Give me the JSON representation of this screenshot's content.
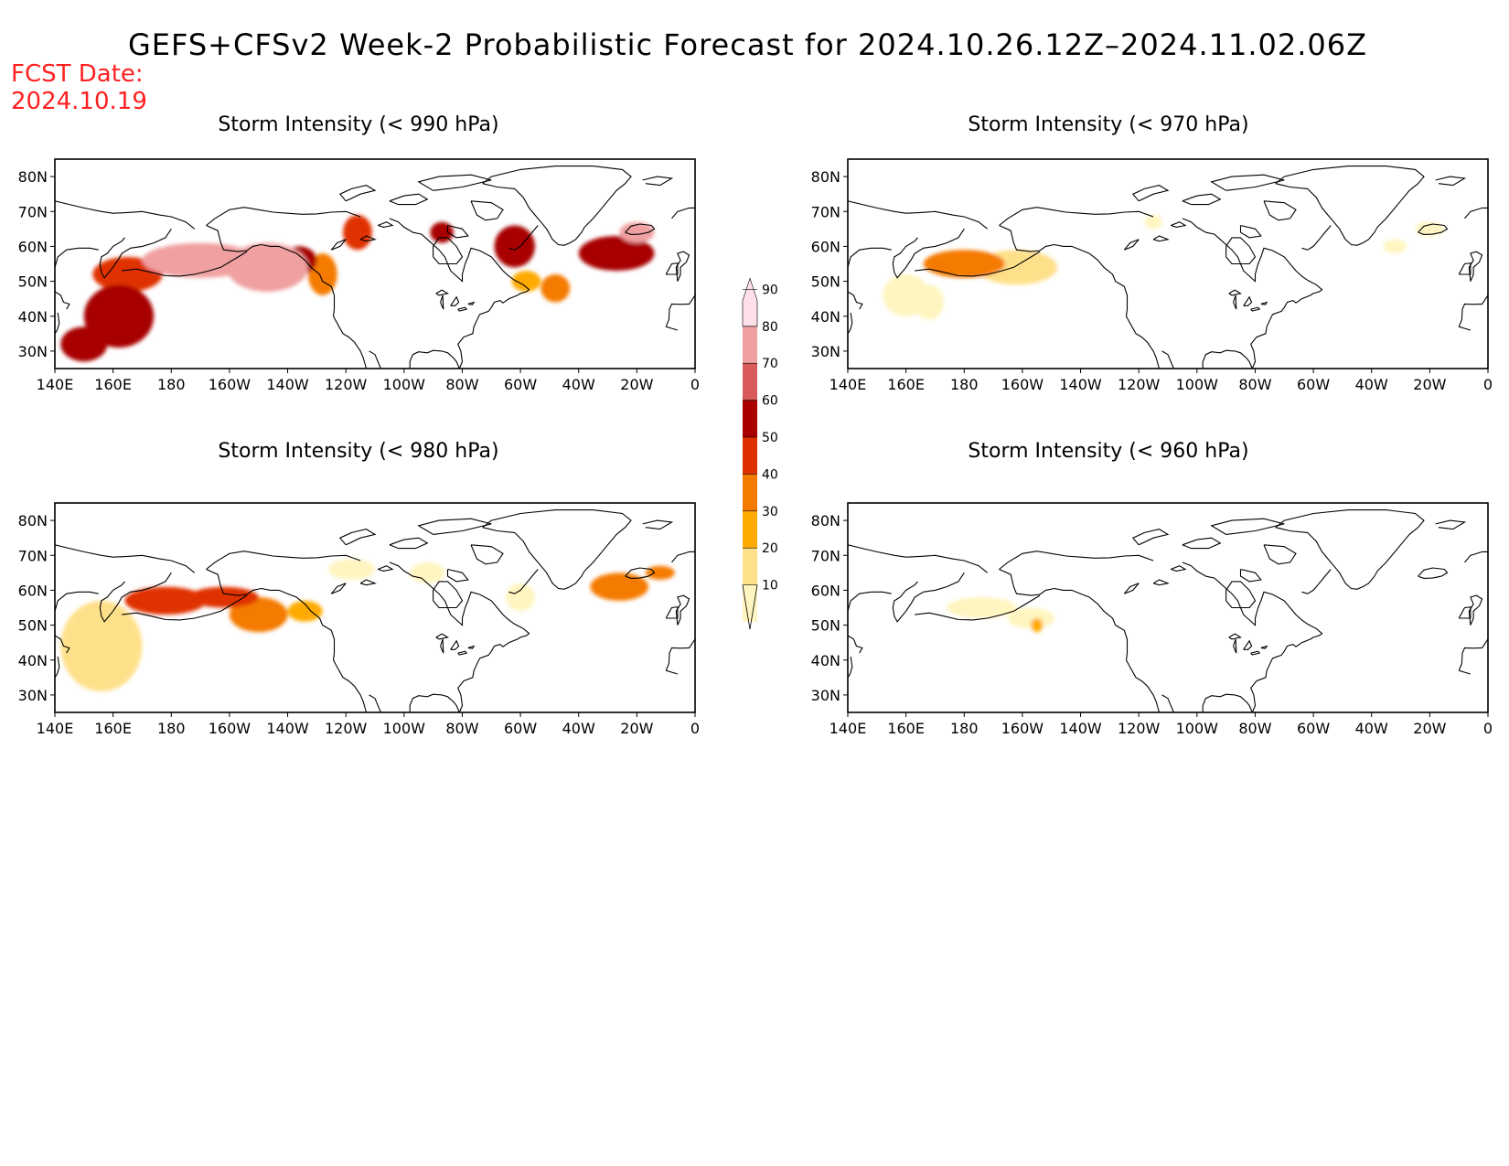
{
  "title": "GEFS+CFSv2 Week-2 Probabilistic Forecast for 2024.10.26.12Z–2024.11.02.06Z",
  "fcst_label": "FCST Date:",
  "fcst_date": "2024.10.19",
  "lat_labels": [
    "80N",
    "70N",
    "60N",
    "50N",
    "40N",
    "30N"
  ],
  "lon_labels": [
    "140E",
    "160E",
    "180",
    "160W",
    "140W",
    "120W",
    "100W",
    "80W",
    "60W",
    "40W",
    "20W",
    "0"
  ],
  "colorbar": {
    "levels": [
      10,
      20,
      30,
      40,
      50,
      60,
      70,
      80,
      90
    ],
    "colors": [
      "#fff5c0",
      "#ffe08a",
      "#ffaa00",
      "#f47a00",
      "#e03000",
      "#a80000",
      "#d85a5a",
      "#f0a0a0",
      "#ffe0e8"
    ]
  },
  "panels": [
    {
      "id": "p990",
      "title": "Storm Intensity (< 990 hPa)",
      "blobs": [
        {
          "lon": 162,
          "lat": 40,
          "rx": 12,
          "ry": 9,
          "v": 60
        },
        {
          "lon": 150,
          "lat": 32,
          "rx": 8,
          "ry": 5,
          "v": 60
        },
        {
          "lon": 165,
          "lat": 52,
          "rx": 12,
          "ry": 5,
          "v": 55
        },
        {
          "lon": 190,
          "lat": 56,
          "rx": 20,
          "ry": 5,
          "v": 80
        },
        {
          "lon": 213,
          "lat": 54,
          "rx": 14,
          "ry": 7,
          "v": 80
        },
        {
          "lon": 224,
          "lat": 56,
          "rx": 6,
          "ry": 4,
          "v": 60
        },
        {
          "lon": 232,
          "lat": 52,
          "rx": 5,
          "ry": 6,
          "v": 40
        },
        {
          "lon": 244,
          "lat": 64,
          "rx": 5,
          "ry": 5,
          "v": 50
        },
        {
          "lon": 273,
          "lat": 64,
          "rx": 4,
          "ry": 3,
          "v": 60
        },
        {
          "lon": 298,
          "lat": 60,
          "rx": 7,
          "ry": 6,
          "v": 60
        },
        {
          "lon": 302,
          "lat": 50,
          "rx": 5,
          "ry": 3,
          "v": 35
        },
        {
          "lon": 333,
          "lat": 58,
          "rx": 13,
          "ry": 5,
          "v": 60
        },
        {
          "lon": 340,
          "lat": 64,
          "rx": 6,
          "ry": 3,
          "v": 80
        },
        {
          "lon": 312,
          "lat": 48,
          "rx": 5,
          "ry": 4,
          "v": 40
        }
      ]
    },
    {
      "id": "p970",
      "title": "Storm Intensity (< 970 hPa)",
      "blobs": [
        {
          "lon": 160,
          "lat": 46,
          "rx": 8,
          "ry": 6,
          "v": 15
        },
        {
          "lon": 180,
          "lat": 55,
          "rx": 14,
          "ry": 4,
          "v": 40
        },
        {
          "lon": 198,
          "lat": 54,
          "rx": 14,
          "ry": 5,
          "v": 25
        },
        {
          "lon": 168,
          "lat": 44,
          "rx": 5,
          "ry": 5,
          "v": 15
        },
        {
          "lon": 245,
          "lat": 67,
          "rx": 3,
          "ry": 2,
          "v": 15
        },
        {
          "lon": 340,
          "lat": 65,
          "rx": 5,
          "ry": 2,
          "v": 15
        },
        {
          "lon": 328,
          "lat": 60,
          "rx": 4,
          "ry": 2,
          "v": 15
        }
      ]
    },
    {
      "id": "p980",
      "title": "Storm Intensity (< 980 hPa)",
      "blobs": [
        {
          "lon": 156,
          "lat": 44,
          "rx": 14,
          "ry": 13,
          "v": 20
        },
        {
          "lon": 178,
          "lat": 57,
          "rx": 14,
          "ry": 4,
          "v": 55
        },
        {
          "lon": 198,
          "lat": 58,
          "rx": 12,
          "ry": 3,
          "v": 50
        },
        {
          "lon": 210,
          "lat": 53,
          "rx": 10,
          "ry": 5,
          "v": 40
        },
        {
          "lon": 226,
          "lat": 54,
          "rx": 6,
          "ry": 3,
          "v": 30
        },
        {
          "lon": 242,
          "lat": 66,
          "rx": 8,
          "ry": 3,
          "v": 15
        },
        {
          "lon": 268,
          "lat": 65,
          "rx": 6,
          "ry": 3,
          "v": 15
        },
        {
          "lon": 300,
          "lat": 58,
          "rx": 5,
          "ry": 4,
          "v": 15
        },
        {
          "lon": 334,
          "lat": 61,
          "rx": 10,
          "ry": 4,
          "v": 40
        },
        {
          "lon": 348,
          "lat": 65,
          "rx": 5,
          "ry": 2,
          "v": 45
        }
      ]
    },
    {
      "id": "p960",
      "title": "Storm Intensity (< 960 hPa)",
      "blobs": [
        {
          "lon": 186,
          "lat": 55,
          "rx": 12,
          "ry": 3,
          "v": 15
        },
        {
          "lon": 203,
          "lat": 52,
          "rx": 8,
          "ry": 3,
          "v": 15
        },
        {
          "lon": 205,
          "lat": 50,
          "rx": 2,
          "ry": 2,
          "v": 35
        }
      ]
    }
  ]
}
